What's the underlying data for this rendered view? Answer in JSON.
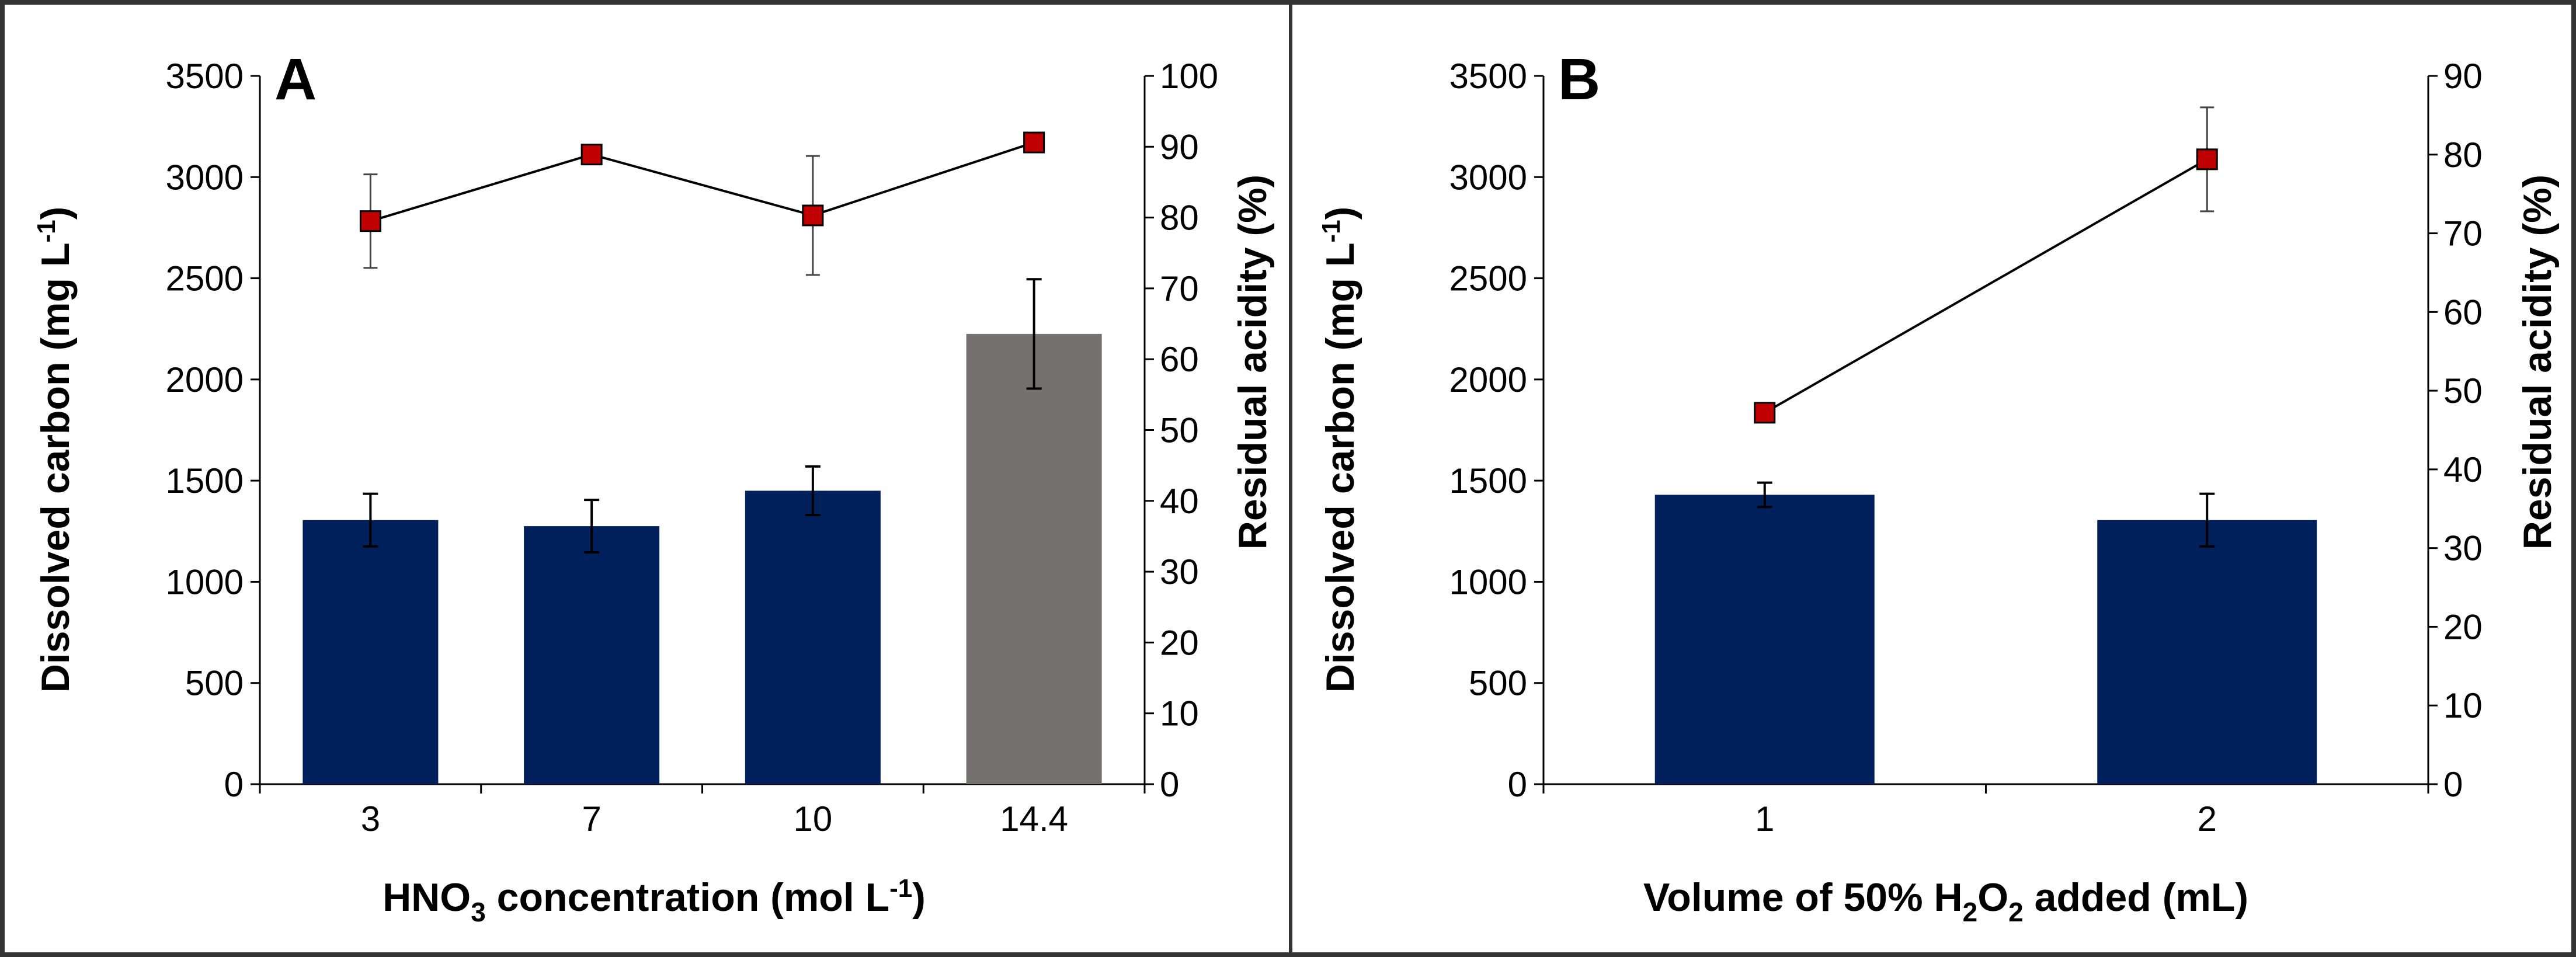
{
  "colors": {
    "bar_navy": "#00205c",
    "bar_gray": "#767171",
    "marker_red": "#c00000",
    "line": "#000000",
    "frame": "#333333"
  },
  "chart_data": [
    {
      "type": "bar",
      "panel_label": "A",
      "categories": [
        "3",
        "7",
        "10",
        "14.4"
      ],
      "series": [
        {
          "name": "Dissolved carbon",
          "axis": "left",
          "values": [
            1305,
            1275,
            1450,
            2225
          ],
          "errors": [
            130,
            130,
            120,
            270
          ],
          "bar_colors": [
            "#00205c",
            "#00205c",
            "#00205c",
            "#767171"
          ]
        },
        {
          "name": "Residual acidity",
          "axis": "right",
          "type": "line",
          "values": [
            79.5,
            88.9,
            80.3,
            90.6
          ],
          "errors": [
            6.6,
            1.0,
            8.4,
            0
          ]
        }
      ],
      "xlabel": {
        "main": "HNO",
        "sub": "3",
        "rest": " concentration (mol L",
        "sup": "-1",
        "end": ")"
      },
      "ylabel_left": {
        "main": "Dissolved carbon (mg L",
        "sup": "-1",
        "end": ")"
      },
      "ylabel_right": "Residual acidity (%)",
      "yleft": {
        "min": 0,
        "max": 3500,
        "step": 500,
        "ticks": [
          "0",
          "500",
          "1000",
          "1500",
          "2000",
          "2500",
          "3000",
          "3500"
        ]
      },
      "yright": {
        "min": 0,
        "max": 100,
        "step": 10,
        "ticks": [
          "0",
          "10",
          "20",
          "30",
          "40",
          "50",
          "60",
          "70",
          "80",
          "90",
          "100"
        ]
      }
    },
    {
      "type": "bar",
      "panel_label": "B",
      "categories": [
        "1",
        "2"
      ],
      "series": [
        {
          "name": "Dissolved carbon",
          "axis": "left",
          "values": [
            1430,
            1305
          ],
          "errors": [
            60,
            130
          ],
          "bar_colors": [
            "#00205c",
            "#00205c"
          ]
        },
        {
          "name": "Residual acidity",
          "axis": "right",
          "type": "line",
          "values": [
            47.2,
            79.4
          ],
          "errors": [
            0,
            6.6
          ]
        }
      ],
      "xlabel": {
        "a": "Volume of 50% H",
        "sub1": "2",
        "b": "O",
        "sub2": "2",
        "c": " added (mL)"
      },
      "ylabel_left": {
        "main": "Dissolved carbon (mg L",
        "sup": "-1",
        "end": ")"
      },
      "ylabel_right": "Residual acidity (%)",
      "yleft": {
        "min": 0,
        "max": 3500,
        "step": 500,
        "ticks": [
          "0",
          "500",
          "1000",
          "1500",
          "2000",
          "2500",
          "3000",
          "3500"
        ]
      },
      "yright": {
        "min": 0,
        "max": 90,
        "step": 10,
        "ticks": [
          "0",
          "10",
          "20",
          "30",
          "40",
          "50",
          "60",
          "70",
          "80",
          "90"
        ]
      }
    }
  ]
}
